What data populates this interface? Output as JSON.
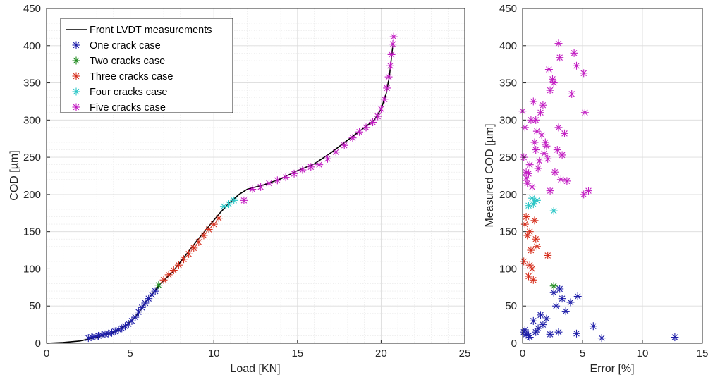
{
  "chart_data": [
    {
      "type": "line+scatter",
      "xlabel": "Load [KN]",
      "ylabel": "COD [µm]",
      "xlim": [
        0,
        25
      ],
      "ylim": [
        0,
        450
      ],
      "xticks": [
        0,
        5,
        10,
        15,
        20,
        25
      ],
      "yticks": [
        0,
        50,
        100,
        150,
        200,
        250,
        300,
        350,
        400,
        450
      ],
      "grid": true,
      "minor_grid": true,
      "legend_position": "top-left",
      "legend": [
        {
          "label": "Front LVDT measurements",
          "color": "#000000",
          "marker": "line"
        },
        {
          "label": "One crack case",
          "color": "#1f1fa8",
          "marker": "asterisk"
        },
        {
          "label": "Two cracks case",
          "color": "#1e8a1e",
          "marker": "asterisk"
        },
        {
          "label": "Three cracks case",
          "color": "#d6301e",
          "marker": "asterisk"
        },
        {
          "label": "Four cracks case",
          "color": "#2cc6c6",
          "marker": "asterisk"
        },
        {
          "label": "Five cracks case",
          "color": "#c21ec2",
          "marker": "asterisk"
        }
      ],
      "series": [
        {
          "name": "Front LVDT measurements",
          "color": "#000000",
          "style": "line",
          "points": [
            [
              0,
              0
            ],
            [
              1,
              1
            ],
            [
              2,
              3
            ],
            [
              3,
              8
            ],
            [
              4,
              15
            ],
            [
              4.8,
              25
            ],
            [
              5.3,
              35
            ],
            [
              5.7,
              47
            ],
            [
              6.0,
              58
            ],
            [
              6.4,
              68
            ],
            [
              6.8,
              80
            ],
            [
              7.5,
              95
            ],
            [
              8.2,
              115
            ],
            [
              9.0,
              138
            ],
            [
              9.8,
              160
            ],
            [
              10.4,
              176
            ],
            [
              10.9,
              188
            ],
            [
              11.5,
              200
            ],
            [
              12,
              207
            ],
            [
              13,
              213
            ],
            [
              14,
              221
            ],
            [
              15,
              232
            ],
            [
              16,
              241
            ],
            [
              17,
              256
            ],
            [
              18,
              273
            ],
            [
              19,
              290
            ],
            [
              19.6,
              300
            ],
            [
              20.0,
              315
            ],
            [
              20.3,
              335
            ],
            [
              20.5,
              360
            ],
            [
              20.6,
              380
            ],
            [
              20.7,
              400
            ]
          ]
        },
        {
          "name": "One crack case",
          "color": "#1f1fa8",
          "style": "marker",
          "points": [
            [
              2.5,
              7
            ],
            [
              2.7,
              8
            ],
            [
              2.9,
              9
            ],
            [
              3.1,
              10
            ],
            [
              3.3,
              11
            ],
            [
              3.5,
              12
            ],
            [
              3.7,
              13
            ],
            [
              3.9,
              14
            ],
            [
              4.1,
              16
            ],
            [
              4.3,
              18
            ],
            [
              4.5,
              20
            ],
            [
              4.7,
              23
            ],
            [
              4.9,
              26
            ],
            [
              5.1,
              30
            ],
            [
              5.3,
              35
            ],
            [
              5.5,
              42
            ],
            [
              5.7,
              48
            ],
            [
              5.9,
              54
            ],
            [
              6.1,
              60
            ],
            [
              6.3,
              65
            ],
            [
              6.5,
              70
            ]
          ]
        },
        {
          "name": "Two cracks case",
          "color": "#1e8a1e",
          "style": "marker",
          "points": [
            [
              6.7,
              78
            ]
          ]
        },
        {
          "name": "Three cracks case",
          "color": "#d6301e",
          "style": "marker",
          "points": [
            [
              7.0,
              85
            ],
            [
              7.3,
              92
            ],
            [
              7.6,
              98
            ],
            [
              7.9,
              105
            ],
            [
              8.2,
              113
            ],
            [
              8.5,
              120
            ],
            [
              8.8,
              128
            ],
            [
              9.1,
              136
            ],
            [
              9.4,
              145
            ],
            [
              9.7,
              153
            ],
            [
              10.0,
              160
            ],
            [
              10.3,
              168
            ]
          ]
        },
        {
          "name": "Four cracks case",
          "color": "#2cc6c6",
          "style": "marker",
          "points": [
            [
              10.6,
              184
            ],
            [
              10.9,
              187
            ],
            [
              11.2,
              192
            ]
          ]
        },
        {
          "name": "Five cracks case",
          "color": "#c21ec2",
          "style": "marker",
          "points": [
            [
              11.8,
              192
            ],
            [
              12.3,
              207
            ],
            [
              12.8,
              210
            ],
            [
              13.3,
              215
            ],
            [
              13.8,
              219
            ],
            [
              14.3,
              223
            ],
            [
              14.8,
              228
            ],
            [
              15.3,
              233
            ],
            [
              15.8,
              237
            ],
            [
              16.3,
              240
            ],
            [
              16.8,
              248
            ],
            [
              17.3,
              257
            ],
            [
              17.8,
              266
            ],
            [
              18.3,
              276
            ],
            [
              18.7,
              284
            ],
            [
              19.1,
              290
            ],
            [
              19.5,
              297
            ],
            [
              19.8,
              305
            ],
            [
              20.0,
              315
            ],
            [
              20.2,
              328
            ],
            [
              20.35,
              343
            ],
            [
              20.45,
              358
            ],
            [
              20.55,
              373
            ],
            [
              20.62,
              388
            ],
            [
              20.7,
              402
            ],
            [
              20.75,
              412
            ]
          ]
        }
      ]
    },
    {
      "type": "scatter",
      "xlabel": "Error [%]",
      "ylabel": "Measured COD [µm]",
      "xlim": [
        0,
        15
      ],
      "ylim": [
        0,
        450
      ],
      "xticks": [
        0,
        5,
        10,
        15
      ],
      "yticks": [
        0,
        50,
        100,
        150,
        200,
        250,
        300,
        350,
        400,
        450
      ],
      "grid": true,
      "series": [
        {
          "name": "One crack case",
          "color": "#1f1fa8",
          "points": [
            [
              0.1,
              15
            ],
            [
              0.3,
              12
            ],
            [
              0.5,
              10
            ],
            [
              0.6,
              8
            ],
            [
              0.2,
              18
            ],
            [
              0.9,
              30
            ],
            [
              1.1,
              15
            ],
            [
              1.3,
              20
            ],
            [
              1.5,
              38
            ],
            [
              1.7,
              25
            ],
            [
              2.0,
              33
            ],
            [
              2.3,
              12
            ],
            [
              2.6,
              68
            ],
            [
              2.8,
              50
            ],
            [
              3.0,
              15
            ],
            [
              3.1,
              73
            ],
            [
              3.3,
              60
            ],
            [
              3.6,
              43
            ],
            [
              4.0,
              55
            ],
            [
              4.5,
              13
            ],
            [
              4.6,
              63
            ],
            [
              5.9,
              23
            ],
            [
              6.6,
              7
            ],
            [
              12.7,
              8
            ]
          ]
        },
        {
          "name": "Two cracks case",
          "color": "#1e8a1e",
          "points": [
            [
              2.6,
              77
            ]
          ]
        },
        {
          "name": "Three cracks case",
          "color": "#d6301e",
          "points": [
            [
              0.1,
              110
            ],
            [
              0.2,
              160
            ],
            [
              0.3,
              170
            ],
            [
              0.4,
              145
            ],
            [
              0.5,
              90
            ],
            [
              0.6,
              150
            ],
            [
              0.7,
              125
            ],
            [
              0.8,
              100
            ],
            [
              0.9,
              85
            ],
            [
              1.0,
              165
            ],
            [
              1.1,
              140
            ],
            [
              1.2,
              130
            ],
            [
              0.6,
              105
            ],
            [
              2.1,
              118
            ]
          ]
        },
        {
          "name": "Four cracks case",
          "color": "#2cc6c6",
          "points": [
            [
              0.5,
              185
            ],
            [
              0.8,
              195
            ],
            [
              1.0,
              190
            ],
            [
              1.2,
              192
            ],
            [
              0.9,
              187
            ],
            [
              2.6,
              178
            ]
          ]
        },
        {
          "name": "Five cracks case",
          "color": "#c21ec2",
          "points": [
            [
              0.0,
              312
            ],
            [
              0.1,
              250
            ],
            [
              0.2,
              290
            ],
            [
              0.3,
              230
            ],
            [
              0.3,
              222
            ],
            [
              0.4,
              215
            ],
            [
              0.5,
              228
            ],
            [
              0.6,
              240
            ],
            [
              0.7,
              300
            ],
            [
              0.8,
              210
            ],
            [
              0.9,
              325
            ],
            [
              1.0,
              270
            ],
            [
              1.1,
              300
            ],
            [
              1.1,
              260
            ],
            [
              1.2,
              285
            ],
            [
              1.3,
              235
            ],
            [
              1.4,
              245
            ],
            [
              1.5,
              310
            ],
            [
              1.6,
              280
            ],
            [
              1.7,
              320
            ],
            [
              1.8,
              255
            ],
            [
              1.9,
              270
            ],
            [
              2.0,
              265
            ],
            [
              2.1,
              248
            ],
            [
              2.2,
              368
            ],
            [
              2.3,
              205
            ],
            [
              2.3,
              340
            ],
            [
              2.5,
              355
            ],
            [
              2.6,
              350
            ],
            [
              2.7,
              230
            ],
            [
              2.9,
              260
            ],
            [
              3.0,
              403
            ],
            [
              3.0,
              290
            ],
            [
              3.1,
              384
            ],
            [
              3.2,
              220
            ],
            [
              3.3,
              253
            ],
            [
              3.5,
              282
            ],
            [
              3.7,
              218
            ],
            [
              4.1,
              335
            ],
            [
              4.3,
              390
            ],
            [
              4.5,
              373
            ],
            [
              5.1,
              200
            ],
            [
              5.1,
              363
            ],
            [
              5.2,
              310
            ],
            [
              5.5,
              205
            ]
          ]
        }
      ]
    }
  ]
}
